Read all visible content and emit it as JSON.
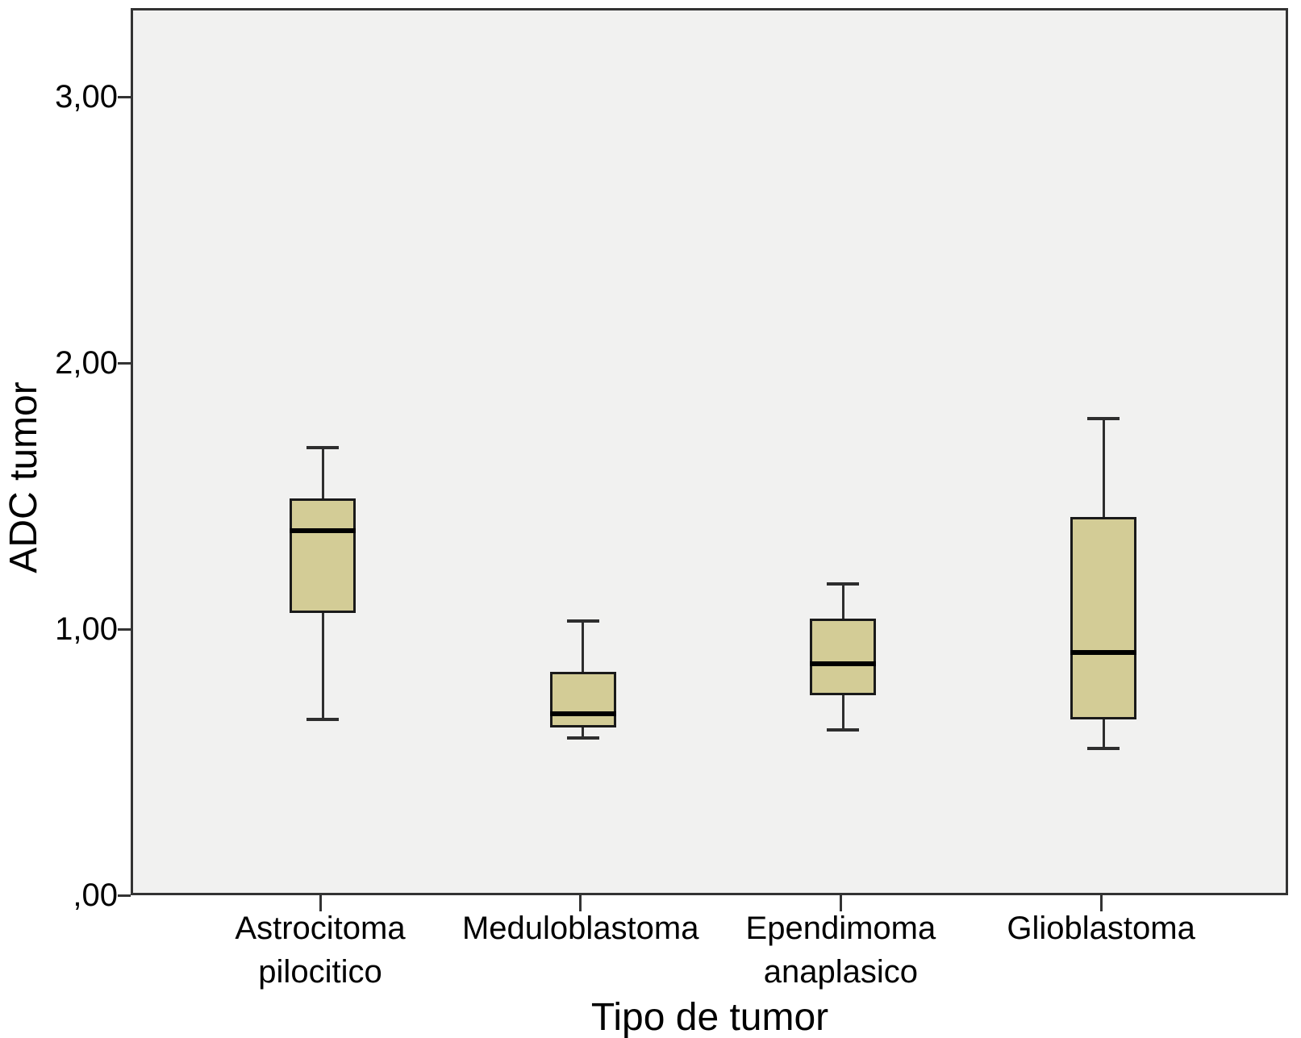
{
  "chart_data": {
    "type": "boxplot",
    "title": "",
    "xlabel": "Tipo de tumor",
    "ylabel": "ADC tumor",
    "ylim": [
      0,
      3.33
    ],
    "grid": false,
    "legend": "none",
    "y_ticks": [
      {
        "value": 0,
        "label": ",00"
      },
      {
        "value": 1,
        "label": "1,00"
      },
      {
        "value": 2,
        "label": "2,00"
      },
      {
        "value": 3,
        "label": "3,00"
      }
    ],
    "categories": [
      "Astrocitoma pilocitico",
      "Meduloblastoma",
      "Ependimoma anaplasico",
      "Glioblastoma"
    ],
    "category_label_lines": [
      [
        "Astrocitoma",
        "pilocitico"
      ],
      [
        "Meduloblastoma"
      ],
      [
        "Ependimoma",
        "anaplasico"
      ],
      [
        "Glioblastoma"
      ]
    ],
    "series": [
      {
        "category": "Astrocitoma pilocitico",
        "whisker_low": 0.67,
        "q1": 1.07,
        "median": 1.38,
        "q3": 1.5,
        "whisker_high": 1.69
      },
      {
        "category": "Meduloblastoma",
        "whisker_low": 0.6,
        "q1": 0.64,
        "median": 0.69,
        "q3": 0.85,
        "whisker_high": 1.04
      },
      {
        "category": "Ependimoma anaplasico",
        "whisker_low": 0.63,
        "q1": 0.76,
        "median": 0.88,
        "q3": 1.05,
        "whisker_high": 1.18
      },
      {
        "category": "Glioblastoma",
        "whisker_low": 0.56,
        "q1": 0.67,
        "median": 0.92,
        "q3": 1.43,
        "whisker_high": 1.8
      }
    ],
    "colors": {
      "box_fill": "#d3cc96",
      "box_border": "#1a1a1a",
      "median": "#000000",
      "whisker": "#2e2e2e",
      "plot_background": "#f1f1f0",
      "plot_border": "#333333",
      "text": "#000000",
      "page_background": "#ffffff"
    }
  }
}
